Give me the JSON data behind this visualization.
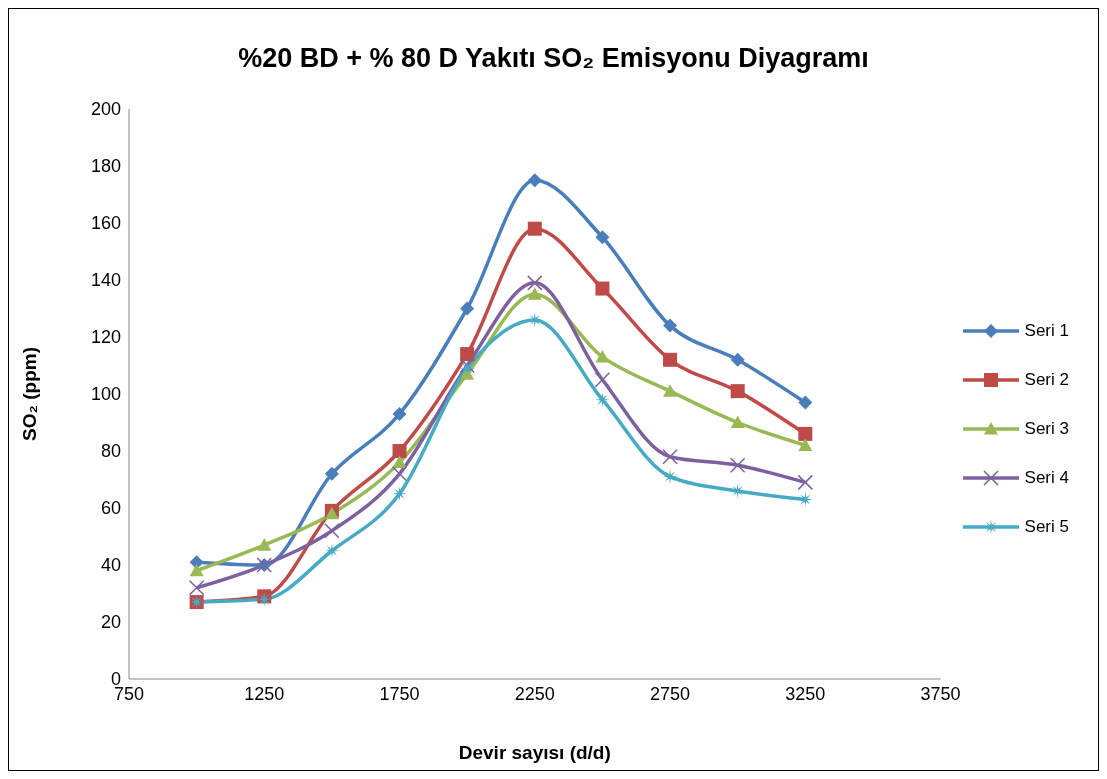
{
  "chart_data": {
    "type": "line",
    "title": "%20 BD + % 80 D Yakıtı SO₂ Emisyonu Diyagramı",
    "xlabel": "Devir sayısı (d/d)",
    "ylabel": "SO₂ (ppm)",
    "x": [
      1000,
      1250,
      1500,
      1750,
      2000,
      2250,
      2500,
      2750,
      3000,
      3250
    ],
    "xlim": [
      750,
      3750
    ],
    "xticks": [
      750,
      1250,
      1750,
      2250,
      2750,
      3250,
      3750
    ],
    "ylim": [
      0,
      200
    ],
    "yticks": [
      0,
      20,
      40,
      60,
      80,
      100,
      120,
      140,
      160,
      180,
      200
    ],
    "grid": false,
    "legend": "right",
    "series": [
      {
        "name": "Seri 1",
        "color": "#4a7ebb",
        "marker": "diamond",
        "values": [
          41,
          40,
          72,
          93,
          130,
          175,
          155,
          124,
          112,
          97
        ]
      },
      {
        "name": "Seri 2",
        "color": "#be4b48",
        "marker": "square",
        "values": [
          27,
          29,
          59,
          80,
          114,
          158,
          137,
          112,
          101,
          86
        ]
      },
      {
        "name": "Seri 3",
        "color": "#98b954",
        "marker": "triangle",
        "values": [
          38,
          47,
          58,
          76,
          107,
          135,
          113,
          101,
          90,
          82
        ]
      },
      {
        "name": "Seri 4",
        "color": "#7d60a0",
        "marker": "cross",
        "values": [
          32,
          40,
          52,
          72,
          110,
          139,
          105,
          78,
          75,
          69
        ]
      },
      {
        "name": "Seri 5",
        "color": "#46aac5",
        "marker": "star",
        "values": [
          27,
          28,
          45,
          65,
          109,
          126,
          98,
          71,
          66,
          63
        ]
      }
    ]
  }
}
